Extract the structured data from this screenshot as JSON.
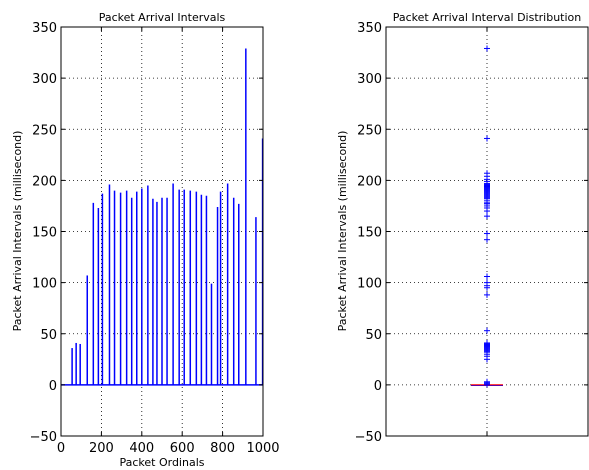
{
  "chart_data": [
    {
      "type": "bar",
      "title": "Packet Arrival Intervals",
      "xlabel": "Packet Ordinals",
      "ylabel": "Packet Arrival Intervals (millisecond)",
      "xlim": [
        0,
        1000
      ],
      "ylim": [
        -50,
        350
      ],
      "grid": true,
      "xticks": [
        0,
        200,
        400,
        600,
        800,
        1000
      ],
      "yticks": [
        -50,
        0,
        50,
        100,
        150,
        200,
        250,
        300,
        350
      ],
      "color": "#0000ff",
      "spikes": [
        {
          "x": 55,
          "y": 36
        },
        {
          "x": 75,
          "y": 41
        },
        {
          "x": 95,
          "y": 40
        },
        {
          "x": 130,
          "y": 107
        },
        {
          "x": 160,
          "y": 178
        },
        {
          "x": 185,
          "y": 173
        },
        {
          "x": 205,
          "y": 187
        },
        {
          "x": 240,
          "y": 196
        },
        {
          "x": 265,
          "y": 190
        },
        {
          "x": 295,
          "y": 188
        },
        {
          "x": 325,
          "y": 190
        },
        {
          "x": 350,
          "y": 183
        },
        {
          "x": 375,
          "y": 189
        },
        {
          "x": 400,
          "y": 192
        },
        {
          "x": 430,
          "y": 195
        },
        {
          "x": 455,
          "y": 182
        },
        {
          "x": 475,
          "y": 179
        },
        {
          "x": 500,
          "y": 183
        },
        {
          "x": 525,
          "y": 183
        },
        {
          "x": 555,
          "y": 197
        },
        {
          "x": 585,
          "y": 191
        },
        {
          "x": 610,
          "y": 191
        },
        {
          "x": 640,
          "y": 190
        },
        {
          "x": 670,
          "y": 189
        },
        {
          "x": 695,
          "y": 186
        },
        {
          "x": 720,
          "y": 185
        },
        {
          "x": 745,
          "y": 99
        },
        {
          "x": 775,
          "y": 174
        },
        {
          "x": 790,
          "y": 189
        },
        {
          "x": 825,
          "y": 197
        },
        {
          "x": 855,
          "y": 183
        },
        {
          "x": 880,
          "y": 177
        },
        {
          "x": 915,
          "y": 329
        },
        {
          "x": 965,
          "y": 164
        },
        {
          "x": 998,
          "y": 241
        }
      ]
    },
    {
      "type": "box",
      "title": "Packet Arrival Interval Distribution",
      "xlabel": "",
      "ylabel": "Packet Arrival Intervals (millisecond)",
      "ylim": [
        -50,
        350
      ],
      "grid": true,
      "yticks": [
        -50,
        0,
        50,
        100,
        150,
        200,
        250,
        300,
        350
      ],
      "median": 0,
      "median_color": "#ff0000",
      "box_color": "#0000ff",
      "flier_marker": "+",
      "fliers": [
        0.5,
        1,
        2,
        3,
        25,
        28,
        30,
        32,
        33,
        34,
        35,
        36,
        37,
        38,
        39,
        40,
        41,
        53,
        88,
        95,
        97,
        100,
        106,
        142,
        148,
        165,
        170,
        173,
        175,
        177,
        178,
        180,
        182,
        183,
        184,
        185,
        186,
        187,
        188,
        189,
        190,
        191,
        192,
        193,
        194,
        195,
        196,
        197,
        199,
        201,
        204,
        207,
        241,
        329
      ]
    }
  ]
}
